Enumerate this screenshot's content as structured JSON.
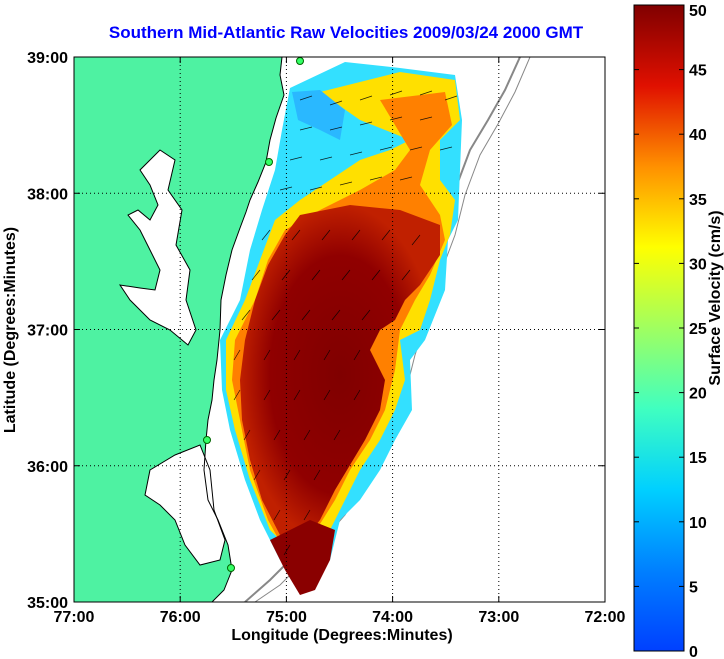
{
  "chart_data": {
    "type": "heatmap",
    "title": "Southern Mid-Atlantic Raw Velocities 2009/03/24 2000 GMT",
    "xlabel": "Longitude (Degrees:Minutes)",
    "ylabel": "Latitude (Degrees:Minutes)",
    "x_ticks": [
      "77:00",
      "76:00",
      "75:00",
      "74:00",
      "73:00",
      "72:00"
    ],
    "y_ticks": [
      "39:00",
      "38:00",
      "37:00",
      "36:00",
      "35:00"
    ],
    "xlim": [
      -77,
      -72
    ],
    "ylim": [
      35,
      39
    ],
    "grid": true,
    "colorbar": {
      "label": "Surface Velocity (cm/s)",
      "ticks": [
        "0",
        "5",
        "10",
        "15",
        "20",
        "25",
        "30",
        "35",
        "40",
        "45",
        "50"
      ],
      "range": [
        0,
        50
      ],
      "colormap": "jet"
    },
    "colors": {
      "land": "#4ef2a2",
      "water": "#ffffff",
      "title": "#0000ff"
    }
  }
}
